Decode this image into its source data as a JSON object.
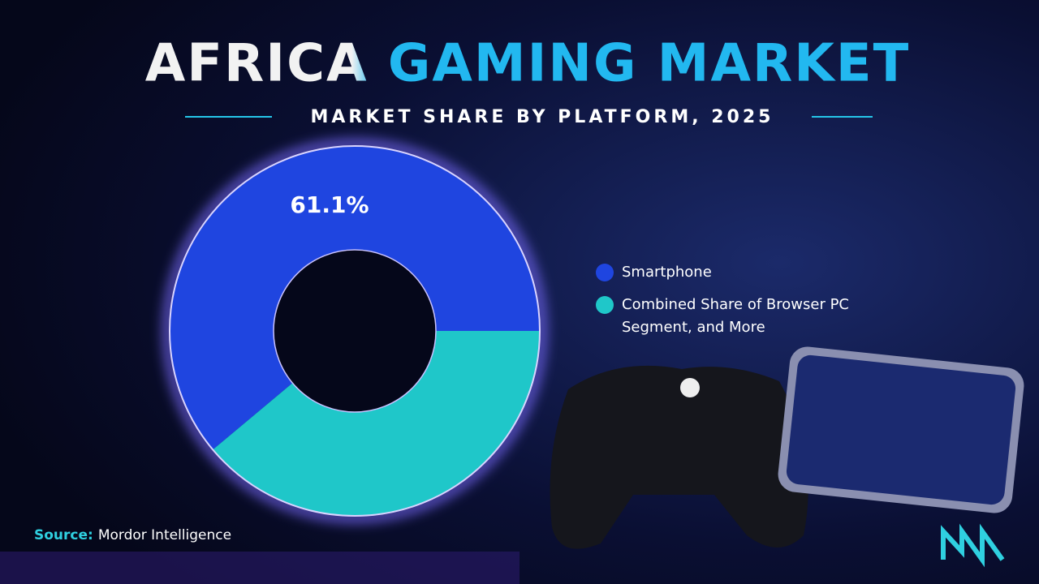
{
  "chart_data": {
    "type": "donut",
    "title": "AFRICA GAMING MARKET",
    "subtitle": "MARKET SHARE BY PLATFORM, 2025",
    "categories": [
      "Smartphone",
      "Combined Share of Browser PC Segment, and More"
    ],
    "values": [
      61.1,
      38.9
    ],
    "value_labels": [
      "61.1%",
      null
    ],
    "colors": [
      "#1f45e0",
      "#1fc7c9"
    ],
    "source_label": "Source:",
    "source": "Mordor Intelligence"
  }
}
